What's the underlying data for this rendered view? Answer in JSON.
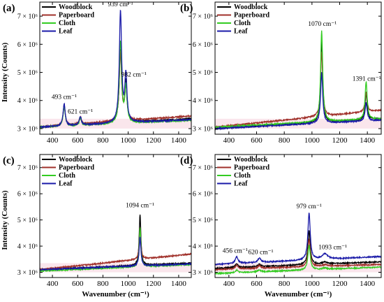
{
  "colors": {
    "Woodblock": "#000000",
    "Paperboard": "#a0302a",
    "Cloth": "#33cc22",
    "Leaf": "#1a1aa8",
    "highlight": "#f2b8c8"
  },
  "legend_order": [
    "Woodblock",
    "Paperboard",
    "Cloth",
    "Leaf"
  ],
  "chart_data": [
    {
      "type": "line",
      "panel": "(a)",
      "xlabel": "",
      "ylabel": "Intensity (Counts)",
      "xlim": [
        300,
        1500
      ],
      "ylim": [
        2800000,
        7500000
      ],
      "xticks": [
        "400",
        "600",
        "800",
        "1000",
        "1200",
        "1400"
      ],
      "yticks": [
        "3 × 10⁶",
        "4 × 10⁶",
        "5 × 10⁶",
        "6 × 10⁶",
        "7 × 10⁶"
      ],
      "legend": true,
      "annotations": [
        {
          "text": "493 cm⁻¹",
          "x": 493,
          "y": 4050000
        },
        {
          "text": "621 cm⁻¹",
          "x": 621,
          "y": 3530000
        },
        {
          "text": "939 cm⁻¹",
          "x": 939,
          "y": 7350000
        },
        {
          "text": "982 cm⁻¹",
          "x": 1045,
          "y": 4850000
        }
      ],
      "series": [
        {
          "name": "Woodblock",
          "baseline": [
            3050000,
            3350000
          ],
          "peaks": [
            [
              493,
              750000,
              10
            ],
            [
              621,
              280000,
              10
            ],
            [
              939,
              2550000,
              11
            ],
            [
              982,
              1400000,
              10
            ]
          ]
        },
        {
          "name": "Paperboard",
          "baseline": [
            3050000,
            3450000
          ],
          "peaks": [
            [
              493,
              700000,
              10
            ],
            [
              621,
              260000,
              10
            ],
            [
              939,
              2450000,
              11
            ],
            [
              982,
              1200000,
              10
            ]
          ]
        },
        {
          "name": "Cloth",
          "baseline": [
            3050000,
            3300000
          ],
          "peaks": [
            [
              493,
              700000,
              10
            ],
            [
              621,
              250000,
              10
            ],
            [
              939,
              2900000,
              11
            ],
            [
              982,
              1250000,
              10
            ]
          ]
        },
        {
          "name": "Leaf",
          "baseline": [
            3050000,
            3320000
          ],
          "peaks": [
            [
              493,
              800000,
              10
            ],
            [
              621,
              300000,
              10
            ],
            [
              939,
              3950000,
              11
            ],
            [
              982,
              1650000,
              10
            ]
          ]
        }
      ]
    },
    {
      "type": "line",
      "panel": "(b)",
      "xlabel": "",
      "ylabel": "",
      "xlim": [
        300,
        1500
      ],
      "ylim": [
        2800000,
        7500000
      ],
      "xticks": [
        "400",
        "600",
        "800",
        "1000",
        "1200",
        "1400"
      ],
      "yticks": [
        "3 × 10⁶",
        "4 × 10⁶",
        "5 × 10⁶",
        "6 × 10⁶",
        "7 × 10⁶"
      ],
      "legend": true,
      "annotations": [
        {
          "text": "1070 cm⁻¹",
          "x": 1075,
          "y": 6650000
        },
        {
          "text": "1391 cm⁻¹",
          "x": 1395,
          "y": 4700000
        }
      ],
      "series": [
        {
          "name": "Woodblock",
          "baseline": [
            3000000,
            3350000
          ],
          "peaks": [
            [
              1070,
              2900000,
              9
            ],
            [
              1391,
              950000,
              9
            ]
          ]
        },
        {
          "name": "Paperboard",
          "baseline": [
            3050000,
            3650000
          ],
          "peaks": [
            [
              1070,
              2300000,
              9
            ],
            [
              1391,
              700000,
              9
            ]
          ]
        },
        {
          "name": "Cloth",
          "baseline": [
            3050000,
            3350000
          ],
          "peaks": [
            [
              1070,
              3250000,
              9
            ],
            [
              1391,
              1350000,
              9
            ]
          ]
        },
        {
          "name": "Leaf",
          "baseline": [
            3000000,
            3300000
          ],
          "peaks": [
            [
              1070,
              1800000,
              9
            ],
            [
              1391,
              650000,
              9
            ]
          ]
        }
      ]
    },
    {
      "type": "line",
      "panel": "(c)",
      "xlabel": "Wavenumber (cm⁻¹)",
      "ylabel": "Intensity (Counts)",
      "xlim": [
        300,
        1500
      ],
      "ylim": [
        2800000,
        7500000
      ],
      "xticks": [
        "400",
        "600",
        "800",
        "1000",
        "1200",
        "1400"
      ],
      "yticks": [
        "3 × 10⁶",
        "4 × 10⁶",
        "5 × 10⁶",
        "6 × 10⁶",
        "7 × 10⁶"
      ],
      "legend": true,
      "annotations": [
        {
          "text": "1094 cm⁻¹",
          "x": 1094,
          "y": 5480000
        }
      ],
      "series": [
        {
          "name": "Woodblock",
          "baseline": [
            3100000,
            3350000
          ],
          "peaks": [
            [
              1094,
              1950000,
              8
            ]
          ]
        },
        {
          "name": "Paperboard",
          "baseline": [
            3100000,
            3700000
          ],
          "peaks": [
            [
              1094,
              1200000,
              8
            ]
          ]
        },
        {
          "name": "Cloth",
          "baseline": [
            3050000,
            3300000
          ],
          "peaks": [
            [
              1094,
              1500000,
              8
            ]
          ]
        },
        {
          "name": "Leaf",
          "baseline": [
            3100000,
            3320000
          ],
          "peaks": [
            [
              1094,
              1100000,
              8
            ]
          ]
        }
      ]
    },
    {
      "type": "line",
      "panel": "(d)",
      "xlabel": "Wavenumber (cm⁻¹)",
      "ylabel": "",
      "xlim": [
        300,
        1500
      ],
      "ylim": [
        2800000,
        7500000
      ],
      "xticks": [
        "400",
        "600",
        "800",
        "1000",
        "1200",
        "1400"
      ],
      "yticks": [
        "3 × 10⁶",
        "4 × 10⁶",
        "5 × 10⁶",
        "6 × 10⁶",
        "7 × 10⁶"
      ],
      "legend": true,
      "annotations": [
        {
          "text": "456 cm⁻¹",
          "x": 445,
          "y": 3750000
        },
        {
          "text": "620 cm⁻¹",
          "x": 630,
          "y": 3700000
        },
        {
          "text": "979 cm⁻¹",
          "x": 979,
          "y": 5450000
        },
        {
          "text": "1093 cm⁻¹",
          "x": 1150,
          "y": 3880000
        }
      ],
      "series": [
        {
          "name": "Woodblock",
          "baseline": [
            3150000,
            3400000
          ],
          "peaks": [
            [
              456,
              150000,
              12
            ],
            [
              620,
              100000,
              12
            ],
            [
              979,
              1300000,
              10
            ],
            [
              1093,
              80000,
              20
            ]
          ]
        },
        {
          "name": "Paperboard",
          "baseline": [
            3100000,
            3300000
          ],
          "peaks": [
            [
              456,
              150000,
              12
            ],
            [
              620,
              100000,
              12
            ],
            [
              979,
              1050000,
              10
            ],
            [
              1093,
              60000,
              20
            ]
          ]
        },
        {
          "name": "Cloth",
          "baseline": [
            2950000,
            3200000
          ],
          "peaks": [
            [
              456,
              100000,
              12
            ],
            [
              620,
              80000,
              12
            ],
            [
              979,
              950000,
              10
            ],
            [
              1093,
              50000,
              20
            ]
          ]
        },
        {
          "name": "Leaf",
          "baseline": [
            3300000,
            3600000
          ],
          "peaks": [
            [
              456,
              250000,
              12
            ],
            [
              620,
              170000,
              12
            ],
            [
              979,
              1800000,
              10
            ],
            [
              1093,
              200000,
              25
            ]
          ]
        }
      ]
    }
  ]
}
